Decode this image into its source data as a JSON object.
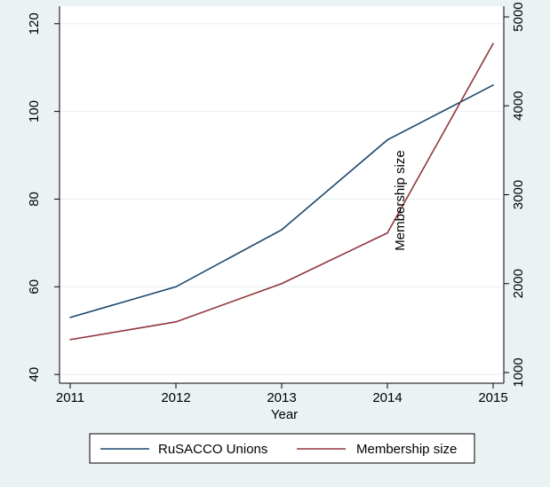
{
  "chart_data": {
    "type": "line",
    "x": [
      2011,
      2012,
      2013,
      2014,
      2015
    ],
    "xlabel": "Year",
    "xticks": [
      "2011",
      "2012",
      "2013",
      "2014",
      "2015"
    ],
    "left_axis": {
      "ylim": [
        38,
        124
      ],
      "ticks": [
        "40",
        "60",
        "80",
        "100",
        "120"
      ],
      "tick_values": [
        40,
        60,
        80,
        100,
        120
      ]
    },
    "right_axis": {
      "ylim": [
        880,
        5120
      ],
      "ticks": [
        "1000",
        "2000",
        "3000",
        "4000",
        "5000"
      ],
      "tick_values": [
        1000,
        2000,
        3000,
        4000,
        5000
      ],
      "label": "Membership size"
    },
    "series": [
      {
        "name": "RuSACCO Unions",
        "axis": "left",
        "color": "#1a476f",
        "values": [
          53,
          60,
          73,
          93.5,
          106
        ]
      },
      {
        "name": "Membership size",
        "axis": "right",
        "color": "#90353b",
        "values": [
          1370,
          1570,
          2000,
          2570,
          4700
        ]
      }
    ],
    "legend": [
      "RuSACCO Unions",
      "Membership size"
    ],
    "legend_position": "bottom",
    "grid": true,
    "plot_background": "#ffffff",
    "page_background": "#eaf2f3"
  }
}
